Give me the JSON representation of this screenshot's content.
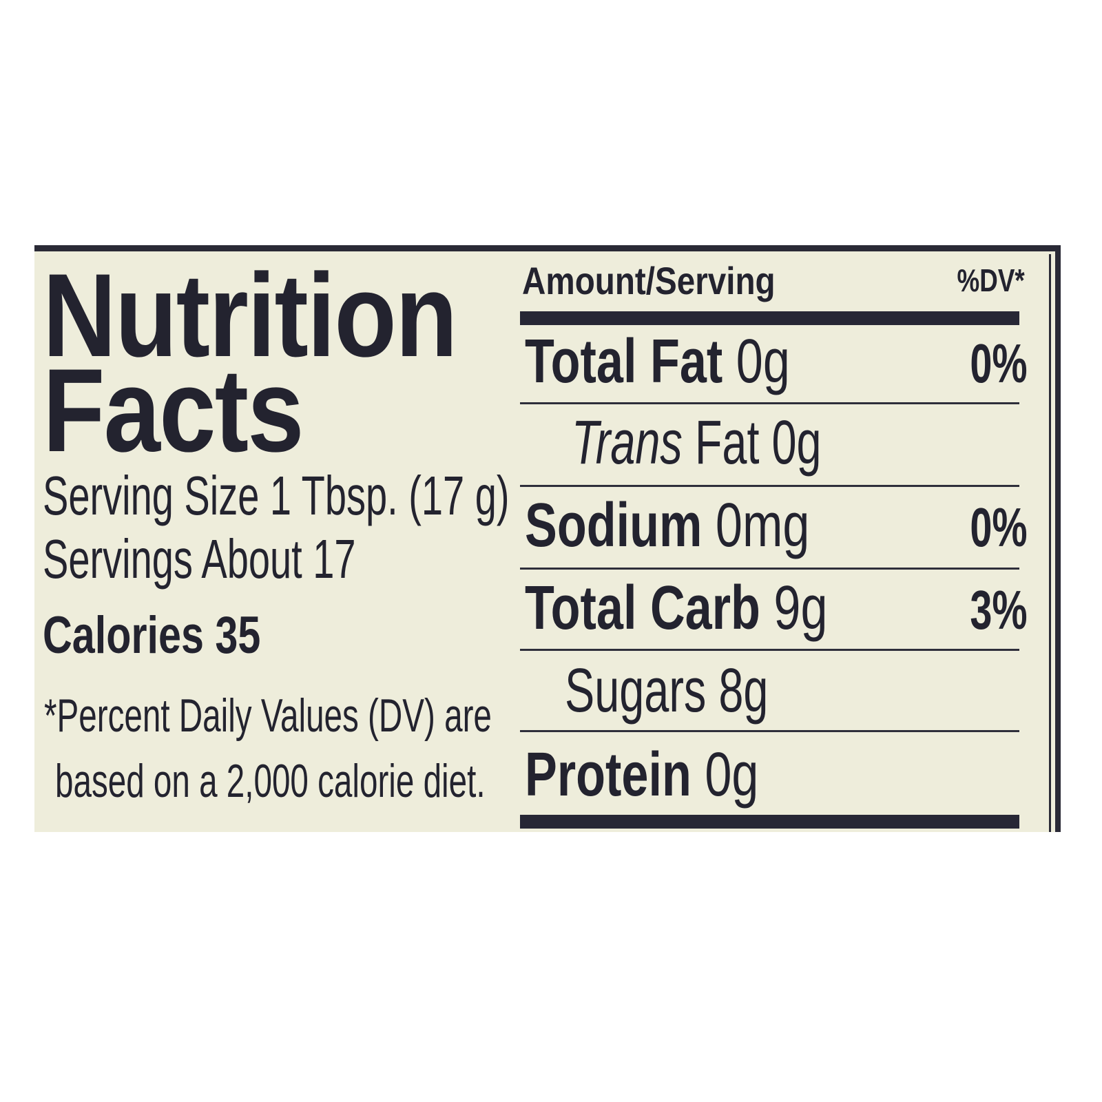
{
  "title_line1": "Nutrition",
  "title_line2": "Facts",
  "serving_size": "Serving Size 1 Tbsp. (17 g)",
  "servings": "Servings About 17",
  "calories": "Calories 35",
  "footnote_line1": "*Percent Daily Values (DV) are",
  "footnote_line2": "based on a 2,000 calorie diet.",
  "header": {
    "amount": "Amount/Serving",
    "dv": "%DV*"
  },
  "rows": [
    {
      "name": "Total Fat",
      "amount": "0g",
      "dv": "0%"
    },
    {
      "name": "Trans",
      "name2": "Fat",
      "amount": "0g"
    },
    {
      "name": "Sodium",
      "amount": "0mg",
      "dv": "0%"
    },
    {
      "name": "Total Carb",
      "amount": "9g",
      "dv": "3%"
    },
    {
      "name": "Sugars",
      "amount": "8g"
    },
    {
      "name": "Protein",
      "amount": "0g"
    }
  ],
  "colors": {
    "background": "#eeeddb",
    "ink": "#23232f"
  }
}
